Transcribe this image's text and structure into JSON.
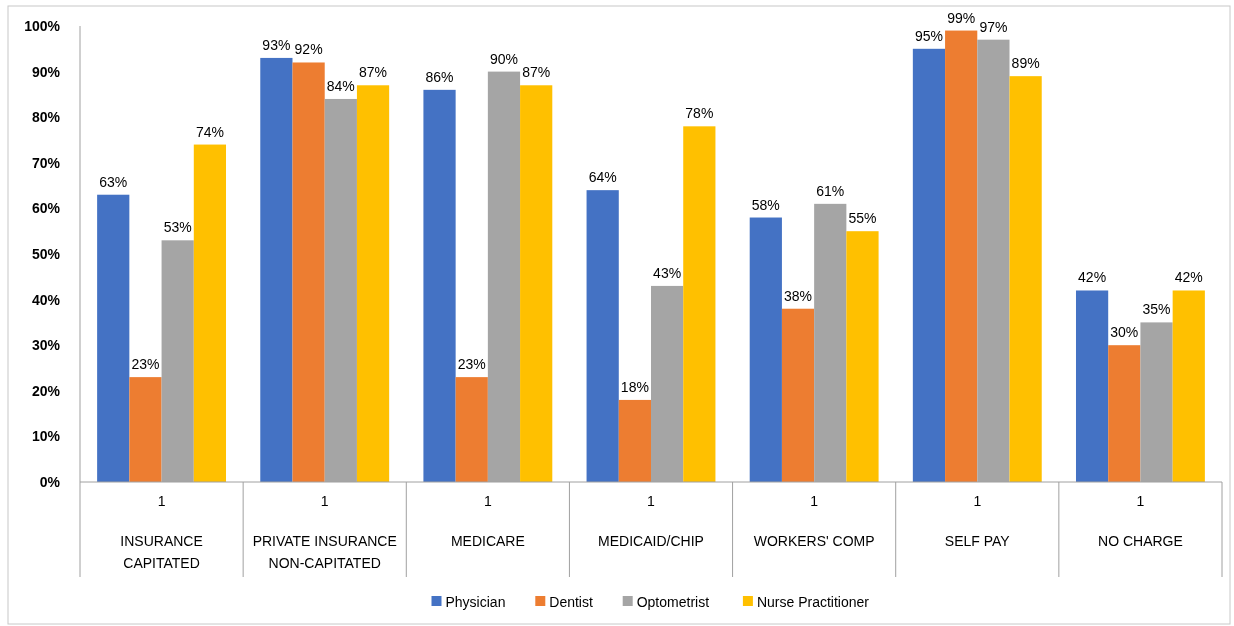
{
  "chart_data": {
    "type": "bar",
    "categories": [
      "INSURANCE CAPITATED",
      "PRIVATE INSURANCE NON-CAPITATED",
      "MEDICARE",
      "MEDICAID/CHIP",
      "WORKERS' COMP",
      "SELF PAY",
      "NO CHARGE"
    ],
    "series": [
      {
        "name": "Physician",
        "color": "#4472c4",
        "values": [
          63,
          93,
          86,
          64,
          58,
          95,
          42
        ],
        "value_labels": [
          "63%",
          "93%",
          "86%",
          "64%",
          "58%",
          "95%",
          "42%"
        ]
      },
      {
        "name": "Dentist",
        "color": "#ed7d31",
        "values": [
          23,
          92,
          23,
          18,
          38,
          99,
          30
        ],
        "value_labels": [
          "23%",
          "92%",
          "23%",
          "18%",
          "38%",
          "99%",
          "30%"
        ]
      },
      {
        "name": "Optometrist",
        "color": "#a5a5a5",
        "values": [
          53,
          84,
          90,
          43,
          61,
          97,
          35
        ],
        "value_labels": [
          "53%",
          "84%",
          "90%",
          "43%",
          "61%",
          "97%",
          "35%"
        ]
      },
      {
        "name": "Nurse Practitioner",
        "color": "#ffc000",
        "values": [
          74,
          87,
          87,
          78,
          55,
          89,
          42
        ],
        "value_labels": [
          "74%",
          "87%",
          "87%",
          "78%",
          "55%",
          "89%",
          "42%"
        ]
      }
    ],
    "ylim": [
      0,
      100
    ],
    "yticks": [
      {
        "value": 0,
        "label": "0%"
      },
      {
        "value": 10,
        "label": "10%"
      },
      {
        "value": 20,
        "label": "20%"
      },
      {
        "value": 30,
        "label": "30%"
      },
      {
        "value": 40,
        "label": "40%"
      },
      {
        "value": 50,
        "label": "50%"
      },
      {
        "value": 60,
        "label": "60%"
      },
      {
        "value": 70,
        "label": "70%"
      },
      {
        "value": 80,
        "label": "80%"
      },
      {
        "value": 90,
        "label": "90%"
      },
      {
        "value": 100,
        "label": "100%"
      }
    ],
    "annotations": [
      "1",
      "1",
      "1",
      "1",
      "1",
      "1",
      "1"
    ],
    "grid": false,
    "legend": "bottom"
  }
}
